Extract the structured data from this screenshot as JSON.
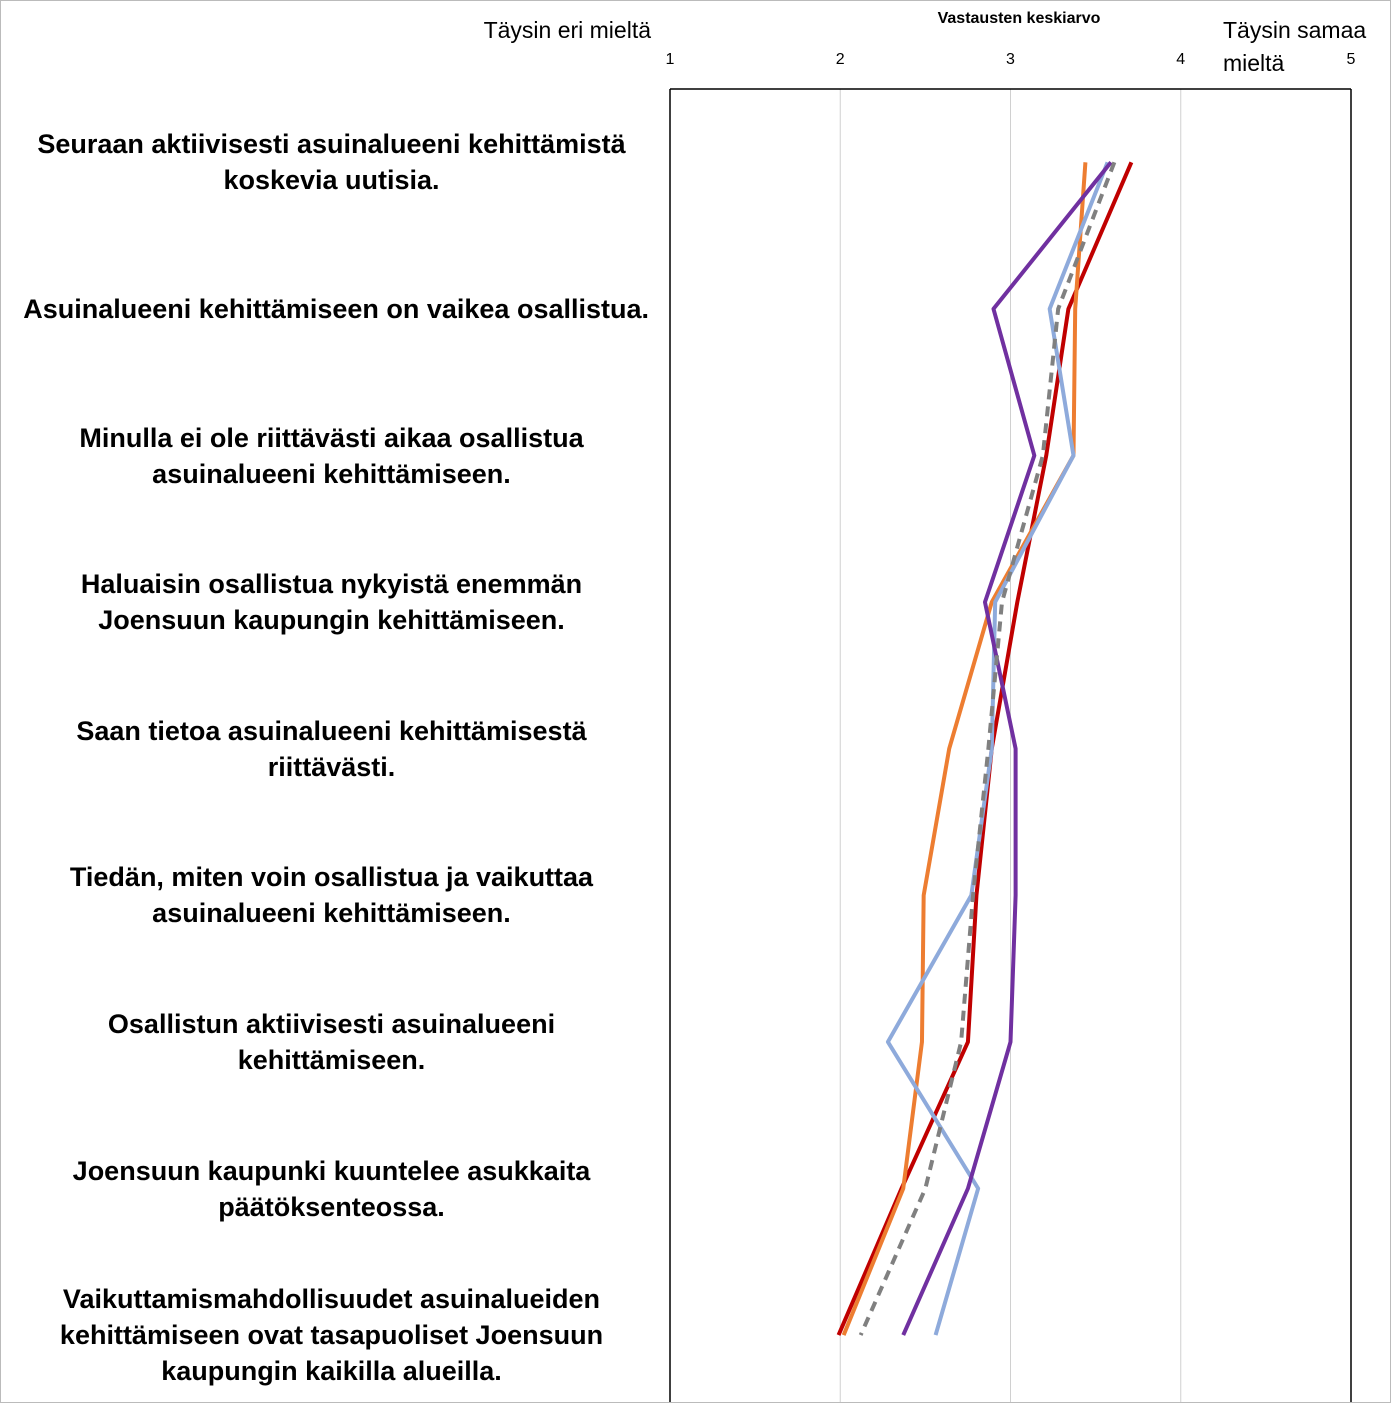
{
  "chart_data": {
    "type": "line",
    "x_axis_label": "Vastausten keskiarvo",
    "annotations": [
      {
        "lines": [
          "Täysin eri mieltä"
        ]
      },
      {
        "lines": [
          "Täysin samaa",
          "mieltä"
        ]
      }
    ],
    "categories": [
      "Seuraan aktiivisesti asuinalueeni kehittämistä koskevia uutisia.",
      "Asuinalueeni kehittämiseen on vaikea osallistua.",
      "Minulla ei ole riittävästi aikaa osallistua asuinalueeni kehittämiseen.",
      "Haluaisin osallistua nykyistä enemmän Joensuun kaupungin kehittämiseen.",
      "Saan tietoa asuinalueeni kehittämisestä riittävästi.",
      "Tiedän, miten voin osallistua ja vaikuttaa asuinalueeni kehittämiseen.",
      "Osallistun aktiivisesti asuinalueeni kehittämiseen.",
      "Joensuun kaupunki kuuntelee asukkaita päätöksenteossa.",
      "Vaikuttamismahdollisuudet asuinalueiden kehittämiseen ovat tasapuoliset Joensuun kaupungin kaikilla alueilla."
    ],
    "series": [
      {
        "color": "#c00000",
        "values": [
          3.71,
          3.34,
          3.21,
          3.04,
          2.89,
          2.8,
          2.75,
          2.36,
          1.99
        ]
      },
      {
        "color": "#ed7d31",
        "values": [
          3.44,
          3.38,
          3.37,
          2.89,
          2.64,
          2.49,
          2.48,
          2.37,
          2.02
        ]
      },
      {
        "color": "#8eaadb",
        "values": [
          3.57,
          3.23,
          3.37,
          2.91,
          2.89,
          2.77,
          2.28,
          2.81,
          2.56
        ]
      },
      {
        "color": "#7030a0",
        "values": [
          3.59,
          2.9,
          3.14,
          2.85,
          3.03,
          3.03,
          3.0,
          2.75,
          2.37
        ]
      },
      {
        "color": "#808080",
        "dashed": true,
        "values": [
          3.61,
          3.28,
          3.19,
          2.95,
          2.87,
          2.78,
          2.71,
          2.5,
          2.12
        ]
      }
    ],
    "xlim": [
      1,
      5
    ],
    "xticks": [
      1,
      2,
      3,
      4,
      5
    ],
    "grid": true
  }
}
